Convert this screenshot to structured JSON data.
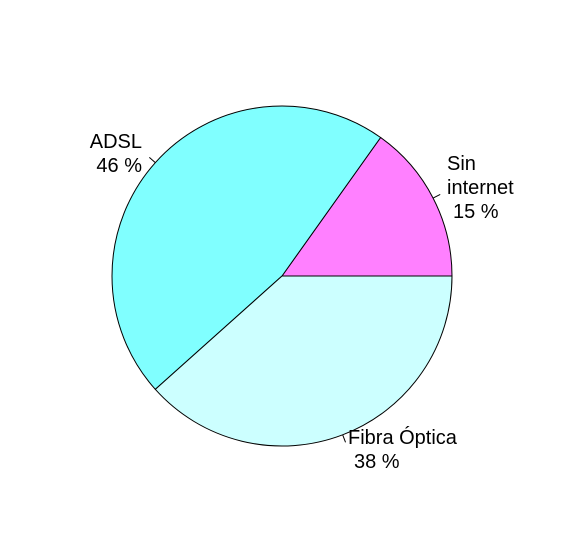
{
  "chart_data": {
    "type": "pie",
    "start_angle_deg": 0,
    "direction": "counterclockwise",
    "slices": [
      {
        "label_lines": [
          "Sin",
          "internet",
          "15 %"
        ],
        "value": 15,
        "color": "#FF80FF"
      },
      {
        "label_lines": [
          "ADSL",
          "46 %"
        ],
        "value": 46,
        "color": "#80FFFF"
      },
      {
        "label_lines": [
          "Fibra Óptica",
          "38 %"
        ],
        "value": 38,
        "color": "#CCFFFF"
      }
    ],
    "border_color": "#000000"
  }
}
